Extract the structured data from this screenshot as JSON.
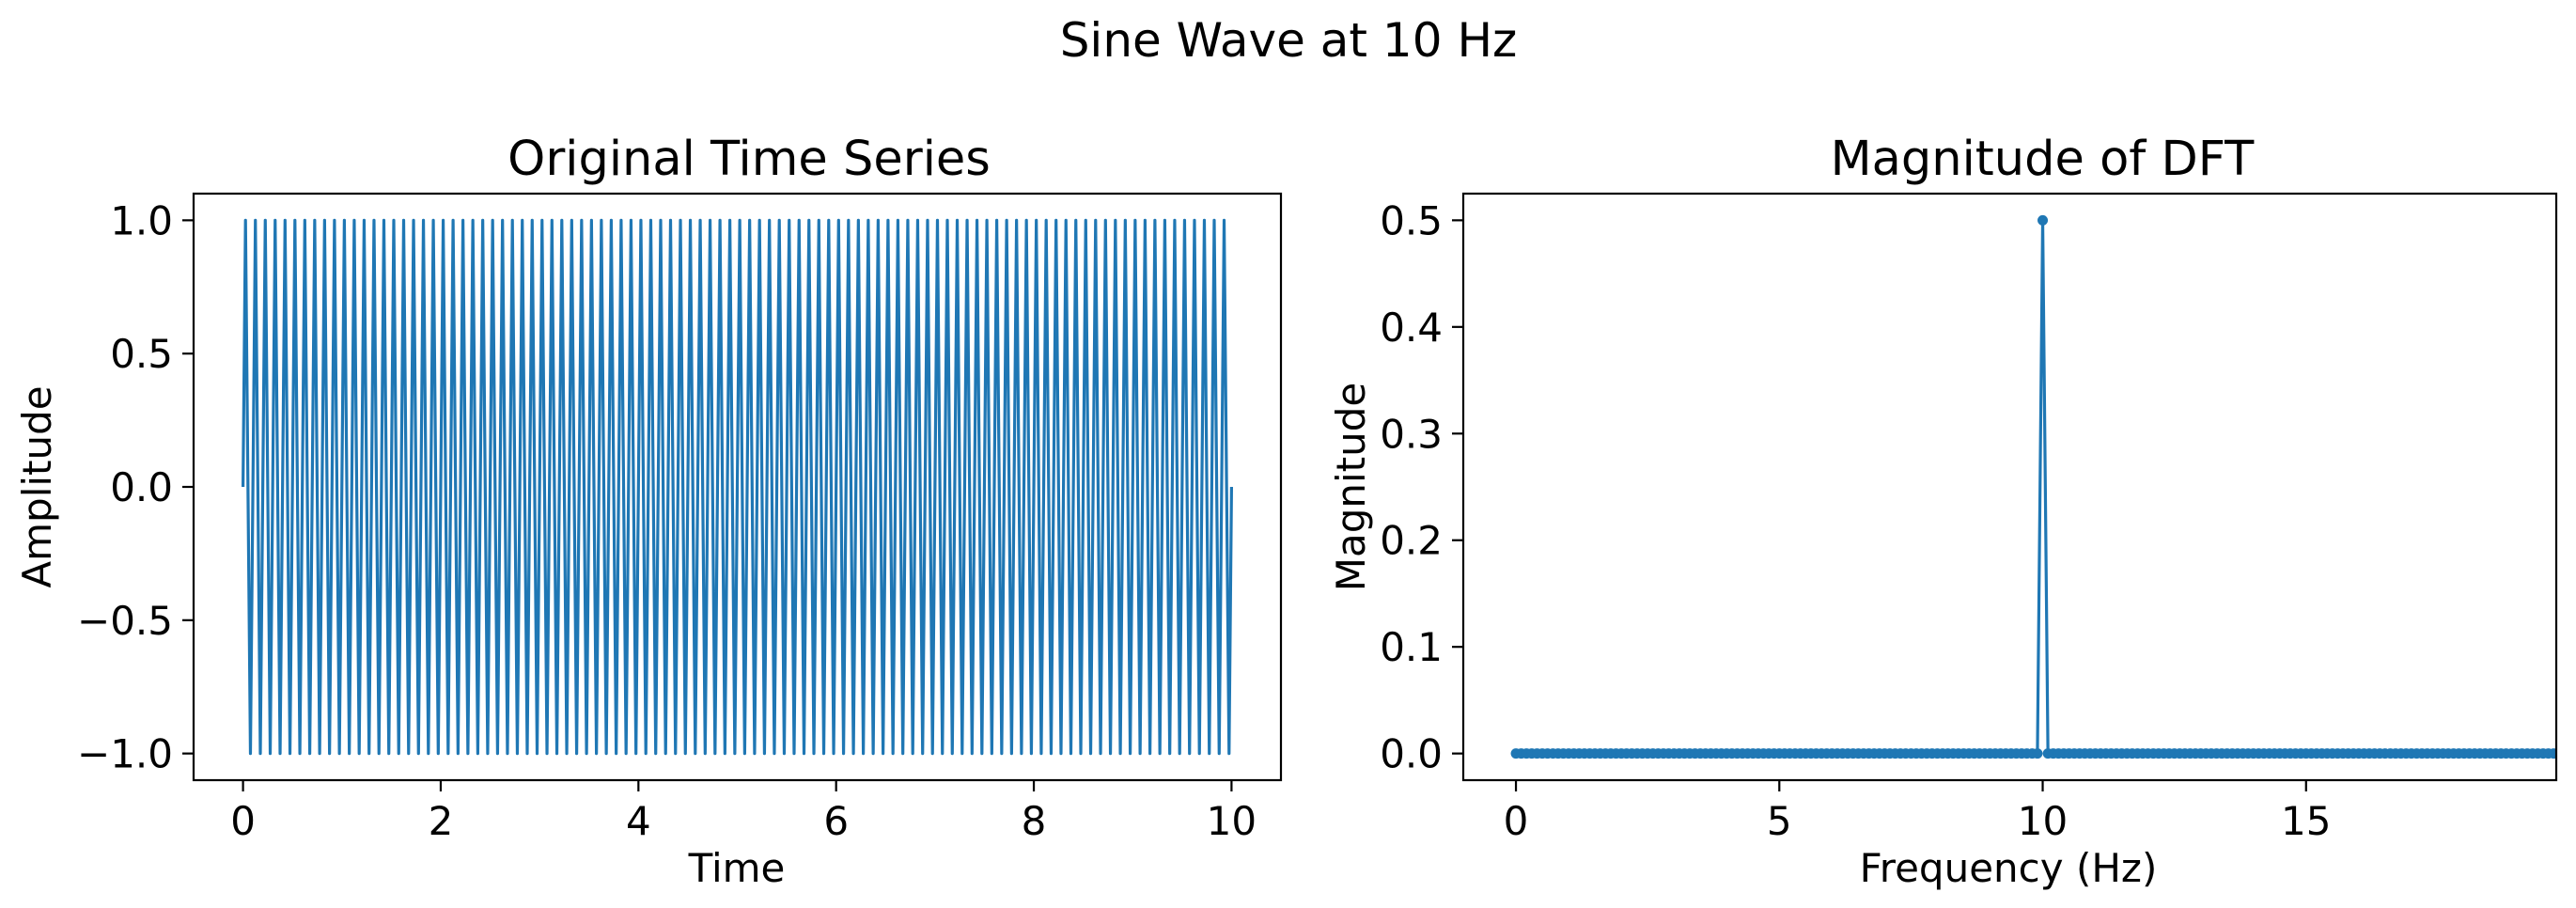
{
  "figure": {
    "title": "Sine Wave at 10 Hz"
  },
  "chart_data": [
    {
      "type": "line",
      "title": "Original Time Series",
      "xlabel": "Time",
      "ylabel": "Amplitude",
      "xlim": [
        -0.5,
        10.5
      ],
      "ylim": [
        -1.1,
        1.1
      ],
      "xticks": [
        0,
        2,
        4,
        6,
        8,
        10
      ],
      "xtick_labels": [
        "0",
        "2",
        "4",
        "6",
        "8",
        "10"
      ],
      "yticks": [
        -1.0,
        -0.5,
        0.0,
        0.5,
        1.0
      ],
      "ytick_labels": [
        "−1.0",
        "−0.5",
        "0.0",
        "0.5",
        "1.0"
      ],
      "grid": false,
      "series": [
        {
          "color": "#1f77b4",
          "function": "sin(2*pi*10*t)",
          "frequency_hz": 10,
          "amplitude": 1.0,
          "t_start": 0,
          "t_end": 9.99,
          "sample_rate_hz": 40
        }
      ]
    },
    {
      "type": "line",
      "title": "Magnitude of DFT",
      "xlabel": "Frequency (Hz)",
      "ylabel": "Magnitude",
      "xlim": [
        -1.0,
        19.75
      ],
      "ylim": [
        -0.025,
        0.525
      ],
      "xticks": [
        0,
        5,
        10,
        15
      ],
      "xtick_labels": [
        "0",
        "5",
        "10",
        "15"
      ],
      "yticks": [
        0.0,
        0.1,
        0.2,
        0.3,
        0.4,
        0.5
      ],
      "ytick_labels": [
        "0.0",
        "0.1",
        "0.2",
        "0.3",
        "0.4",
        "0.5"
      ],
      "grid": false,
      "series": [
        {
          "color": "#1f77b4",
          "marker": "circle",
          "frequency_step_hz": 0.1,
          "f_start": 0,
          "f_end": 19.9,
          "baseline_value": 0.0,
          "peak_frequency_hz": 10,
          "peak_value": 0.5
        }
      ]
    }
  ]
}
